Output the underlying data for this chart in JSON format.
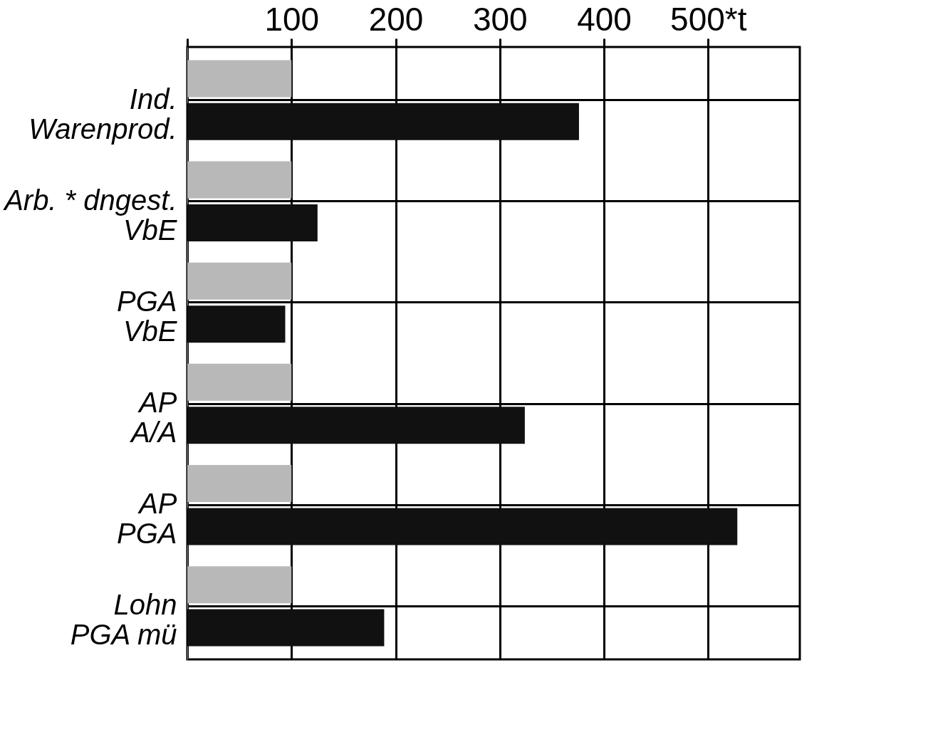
{
  "chart_data": {
    "type": "bar",
    "orientation": "horizontal",
    "categories": [
      "Ind.\nWarenprod.",
      "Arb. * dngest.\nVbE",
      "PGA\nVbE",
      "AP\nA/A",
      "AP\nPGA",
      "Lohn\nPGA    mü"
    ],
    "series": [
      {
        "color": "#b8b8b8",
        "values": [
          100,
          100,
          100,
          100,
          100,
          100
        ]
      },
      {
        "color": "#111111",
        "values": [
          376,
          125,
          94,
          324,
          528,
          189
        ]
      }
    ],
    "xlim": [
      0,
      588
    ],
    "xticks": [
      {
        "value": 0,
        "label": null
      },
      100,
      200,
      300,
      400,
      {
        "value": 500,
        "label": "500*t"
      }
    ],
    "grid": true,
    "legend": false
  }
}
